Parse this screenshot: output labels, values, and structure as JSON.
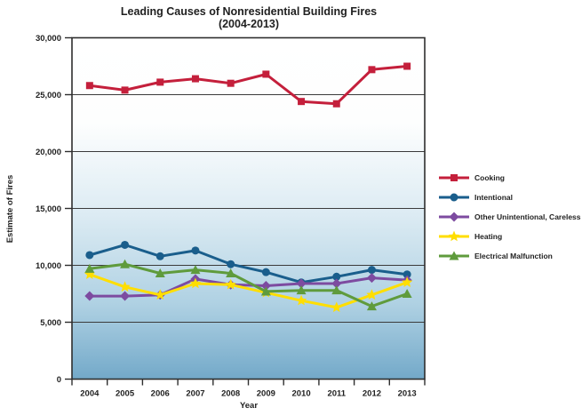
{
  "chart": {
    "title_line1": "Leading Causes of Nonresidential Building Fires",
    "title_line2": "(2004-2013)",
    "y_axis_label": "Estimate of Fires",
    "x_axis_label": "Year"
  },
  "chart_data": {
    "type": "line",
    "title": "Leading Causes of Nonresidential Building Fires (2004-2013)",
    "xlabel": "Year",
    "ylabel": "Estimate of Fires",
    "x": [
      2004,
      2005,
      2006,
      2007,
      2008,
      2009,
      2010,
      2011,
      2012,
      2013
    ],
    "ylim": [
      0,
      30000
    ],
    "ytick_interval": 5000,
    "ytick_labels": [
      "0",
      "5,000",
      "10,000",
      "15,000",
      "20,000",
      "25,000",
      "30,000"
    ],
    "grid": "horizontal",
    "legend_position": "right",
    "plot_background_gradient": [
      "#FFFFFF",
      "#FDFEFE",
      "#DCEBF3",
      "#AFD1E3",
      "#73A9C9"
    ],
    "frame_color": "#2E2E2E",
    "gridline_color": "#3B3B3B",
    "series": [
      {
        "name": "Cooking",
        "color": "#C41F3B",
        "marker": "square",
        "values": [
          25800,
          25400,
          26100,
          26400,
          26000,
          26800,
          24400,
          24200,
          27200,
          27500
        ]
      },
      {
        "name": "Intentional",
        "color": "#1A5E8C",
        "marker": "circle",
        "values": [
          10900,
          11800,
          10800,
          11300,
          10100,
          9400,
          8500,
          9000,
          9600,
          9200
        ]
      },
      {
        "name": "Other Unintentional, Careless",
        "color": "#7D4BA0",
        "marker": "diamond",
        "values": [
          7300,
          7300,
          7400,
          8800,
          8300,
          8200,
          8400,
          8400,
          8900,
          8700
        ]
      },
      {
        "name": "Heating",
        "color": "#FFDE00",
        "marker": "star",
        "values": [
          9200,
          8100,
          7400,
          8400,
          8300,
          7600,
          6900,
          6300,
          7400,
          8500
        ]
      },
      {
        "name": "Electrical Malfunction",
        "color": "#5F9B3C",
        "marker": "triangle",
        "values": [
          9700,
          10100,
          9300,
          9600,
          9300,
          7700,
          7800,
          7800,
          6400,
          7500
        ]
      }
    ]
  }
}
